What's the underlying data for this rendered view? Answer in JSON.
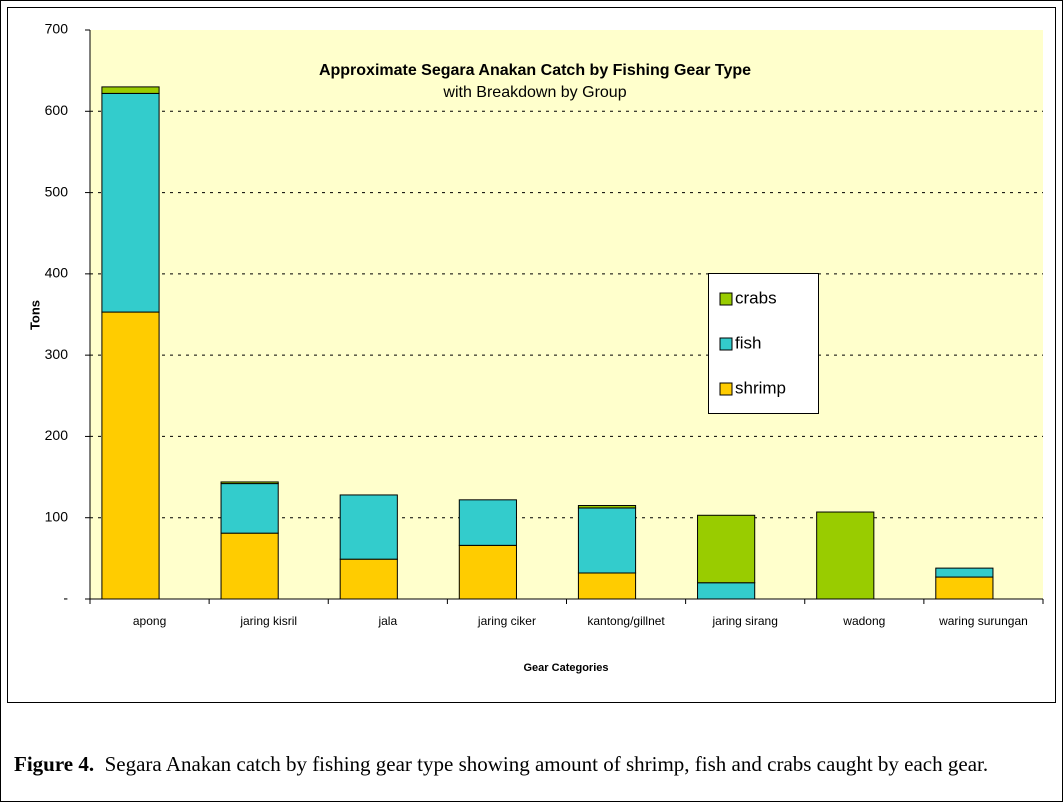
{
  "chart_data": {
    "type": "stacked_bar",
    "title": "Approximate Segara Anakan Catch by Fishing Gear Type",
    "subtitle": "with Breakdown by Group",
    "y_label": "Tons",
    "x_label": "Gear Categories",
    "categories": [
      "apong",
      "jaring kisril",
      "jala",
      "jaring ciker",
      "kantong/gillnet",
      "jaring sirang",
      "wadong",
      "waring surungan"
    ],
    "series": [
      {
        "name": "shrimp",
        "color": "#ffcc00",
        "values": [
          353,
          81,
          49,
          66,
          32,
          0,
          0,
          27
        ]
      },
      {
        "name": "fish",
        "color": "#33cccc",
        "values": [
          269,
          61,
          79,
          56,
          80,
          20,
          0,
          11
        ]
      },
      {
        "name": "crabs",
        "color": "#99cc00",
        "values": [
          8,
          2,
          0,
          0,
          3,
          83,
          107,
          0
        ]
      }
    ],
    "ylim": [
      0,
      700
    ],
    "yticks": [
      {
        "value": 0,
        "label": "-"
      },
      100,
      200,
      300,
      400,
      500,
      600,
      700
    ],
    "grid": true,
    "plot_background": "#ffffcc"
  },
  "caption": {
    "label": "Figure 4.",
    "text": "Segara Anakan catch by fishing gear type showing amount of shrimp, fish and crabs caught by each gear."
  }
}
